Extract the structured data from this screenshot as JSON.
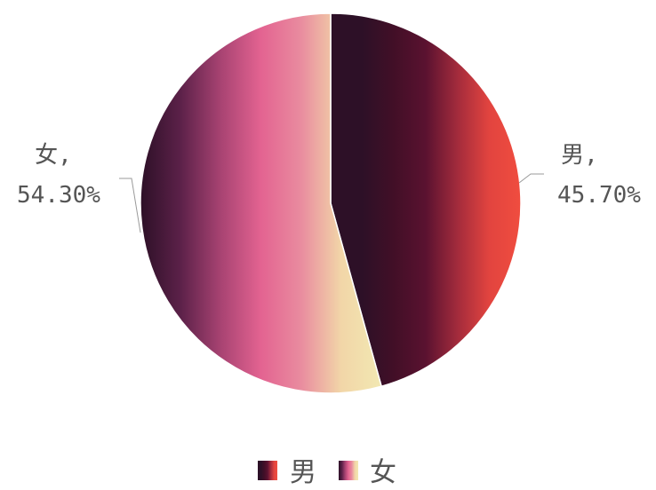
{
  "chart_data": {
    "type": "pie",
    "title": "",
    "series": [
      {
        "name": "",
        "slices": [
          {
            "category": "男",
            "value": 45.7,
            "label_name": "男,",
            "label_value": "45.70%",
            "gradient": [
              "#2d1027",
              "#2d1027",
              "#420f27",
              "#5a1230",
              "#a32b3c",
              "#e2443f",
              "#f04d3f"
            ]
          },
          {
            "category": "女",
            "value": 54.3,
            "label_name": "女,",
            "label_value": "54.30%",
            "gradient": [
              "#2d1027",
              "#5c2149",
              "#a84372",
              "#e36391",
              "#e98c9f",
              "#f2d6a8",
              "#f2e8b2"
            ]
          }
        ]
      }
    ],
    "start_angle_deg": 0,
    "direction": "clockwise",
    "legend": {
      "position": "bottom",
      "entries": [
        "男",
        "女"
      ]
    }
  }
}
